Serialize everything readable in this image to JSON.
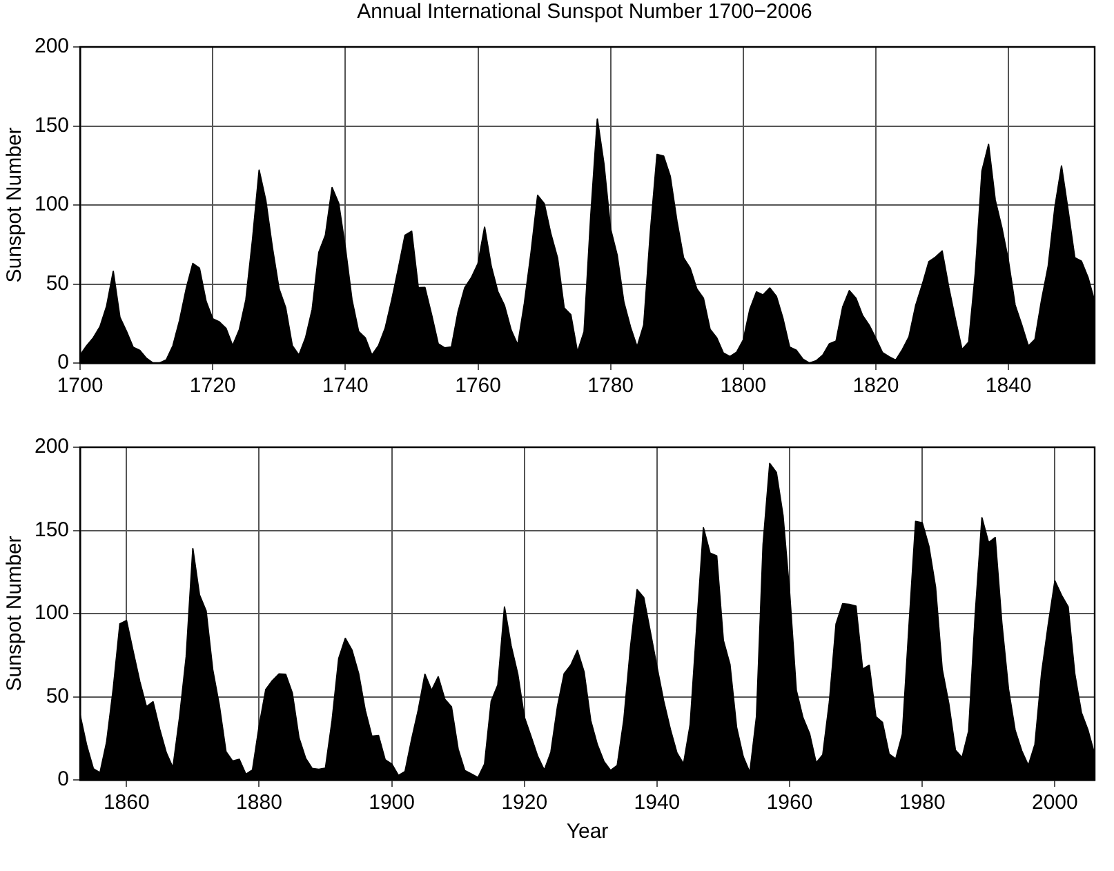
{
  "chart_data": [
    {
      "type": "area",
      "title": "Annual International Sunspot Number 1700−2006",
      "ylabel": "Sunspot Number",
      "xlim": [
        1700,
        1853
      ],
      "ylim": [
        0,
        200
      ],
      "xticks": [
        1700,
        1720,
        1740,
        1760,
        1780,
        1800,
        1820,
        1840
      ],
      "yticks": [
        0,
        50,
        100,
        150,
        200
      ],
      "grid": true,
      "x": [
        1700,
        1701,
        1702,
        1703,
        1704,
        1705,
        1706,
        1707,
        1708,
        1709,
        1710,
        1711,
        1712,
        1713,
        1714,
        1715,
        1716,
        1717,
        1718,
        1719,
        1720,
        1721,
        1722,
        1723,
        1724,
        1725,
        1726,
        1727,
        1728,
        1729,
        1730,
        1731,
        1732,
        1733,
        1734,
        1735,
        1736,
        1737,
        1738,
        1739,
        1740,
        1741,
        1742,
        1743,
        1744,
        1745,
        1746,
        1747,
        1748,
        1749,
        1750,
        1751,
        1752,
        1753,
        1754,
        1755,
        1756,
        1757,
        1758,
        1759,
        1760,
        1761,
        1762,
        1763,
        1764,
        1765,
        1766,
        1767,
        1768,
        1769,
        1770,
        1771,
        1772,
        1773,
        1774,
        1775,
        1776,
        1777,
        1778,
        1779,
        1780,
        1781,
        1782,
        1783,
        1784,
        1785,
        1786,
        1787,
        1788,
        1789,
        1790,
        1791,
        1792,
        1793,
        1794,
        1795,
        1796,
        1797,
        1798,
        1799,
        1800,
        1801,
        1802,
        1803,
        1804,
        1805,
        1806,
        1807,
        1808,
        1809,
        1810,
        1811,
        1812,
        1813,
        1814,
        1815,
        1816,
        1817,
        1818,
        1819,
        1820,
        1821,
        1822,
        1823,
        1824,
        1825,
        1826,
        1827,
        1828,
        1829,
        1830,
        1831,
        1832,
        1833,
        1834,
        1835,
        1836,
        1837,
        1838,
        1839,
        1840,
        1841,
        1842,
        1843,
        1844,
        1845,
        1846,
        1847,
        1848,
        1849,
        1850,
        1851,
        1852,
        1853
      ],
      "series": [
        {
          "color": "#000000",
          "values": [
            5,
            11,
            16,
            23,
            36,
            58,
            29,
            20,
            10,
            8,
            3,
            0,
            0,
            2,
            11,
            27,
            47,
            63,
            60,
            39,
            28,
            26,
            22,
            11,
            21,
            40,
            78,
            122,
            103,
            73,
            47,
            35,
            11,
            5,
            16,
            34,
            70,
            81,
            111,
            101,
            73,
            40,
            20,
            16,
            5,
            11,
            22,
            40,
            60,
            80.9,
            83.4,
            47.7,
            47.8,
            30.7,
            12.2,
            9.6,
            10.2,
            32.4,
            47.6,
            54,
            62.9,
            85.9,
            61.2,
            45.1,
            36.4,
            20.9,
            11.4,
            37.8,
            69.8,
            106.1,
            100.8,
            81.6,
            66.5,
            34.8,
            30.6,
            7,
            19.8,
            92.5,
            154.4,
            125.9,
            84.8,
            68.1,
            38.5,
            22.8,
            10.2,
            24.1,
            82.9,
            132,
            130.9,
            118.1,
            89.9,
            66.6,
            60,
            46.9,
            41,
            21.3,
            16,
            6.4,
            4.1,
            6.8,
            14.5,
            34,
            45,
            43.1,
            47.5,
            42.2,
            28.1,
            10.1,
            8.1,
            2.5,
            0,
            1.4,
            5,
            12.2,
            13.9,
            35.4,
            45.8,
            41,
            30.1,
            23.9,
            15.6,
            6.6,
            4,
            1.8,
            8.5,
            16.6,
            36.3,
            49.6,
            64.2,
            67,
            70.9,
            47.8,
            27.5,
            8.5,
            13.2,
            56.9,
            121.5,
            138.3,
            103.2,
            85.7,
            64.6,
            36.7,
            24.2,
            10.7,
            15,
            40.1,
            61.5,
            98.5,
            124.7,
            96.3,
            66.6,
            64.5,
            54.1,
            39
          ]
        }
      ]
    },
    {
      "type": "area",
      "xlabel": "Year",
      "ylabel": "Sunspot Number",
      "xlim": [
        1853,
        2006
      ],
      "ylim": [
        0,
        200
      ],
      "xticks": [
        1860,
        1880,
        1900,
        1920,
        1940,
        1960,
        1980,
        2000
      ],
      "yticks": [
        0,
        50,
        100,
        150,
        200
      ],
      "grid": true,
      "x": [
        1853,
        1854,
        1855,
        1856,
        1857,
        1858,
        1859,
        1860,
        1861,
        1862,
        1863,
        1864,
        1865,
        1866,
        1867,
        1868,
        1869,
        1870,
        1871,
        1872,
        1873,
        1874,
        1875,
        1876,
        1877,
        1878,
        1879,
        1880,
        1881,
        1882,
        1883,
        1884,
        1885,
        1886,
        1887,
        1888,
        1889,
        1890,
        1891,
        1892,
        1893,
        1894,
        1895,
        1896,
        1897,
        1898,
        1899,
        1900,
        1901,
        1902,
        1903,
        1904,
        1905,
        1906,
        1907,
        1908,
        1909,
        1910,
        1911,
        1912,
        1913,
        1914,
        1915,
        1916,
        1917,
        1918,
        1919,
        1920,
        1921,
        1922,
        1923,
        1924,
        1925,
        1926,
        1927,
        1928,
        1929,
        1930,
        1931,
        1932,
        1933,
        1934,
        1935,
        1936,
        1937,
        1938,
        1939,
        1940,
        1941,
        1942,
        1943,
        1944,
        1945,
        1946,
        1947,
        1948,
        1949,
        1950,
        1951,
        1952,
        1953,
        1954,
        1955,
        1956,
        1957,
        1958,
        1959,
        1960,
        1961,
        1962,
        1963,
        1964,
        1965,
        1966,
        1967,
        1968,
        1969,
        1970,
        1971,
        1972,
        1973,
        1974,
        1975,
        1976,
        1977,
        1978,
        1979,
        1980,
        1981,
        1982,
        1983,
        1984,
        1985,
        1986,
        1987,
        1988,
        1989,
        1990,
        1991,
        1992,
        1993,
        1994,
        1995,
        1996,
        1997,
        1998,
        1999,
        2000,
        2001,
        2002,
        2003,
        2004,
        2005,
        2006
      ],
      "series": [
        {
          "color": "#000000",
          "values": [
            39,
            20.6,
            6.7,
            4.3,
            22.7,
            54.8,
            93.8,
            95.8,
            77.2,
            59.1,
            44,
            47,
            30.5,
            16.3,
            7.3,
            37.6,
            74,
            139,
            111.2,
            101.6,
            66.2,
            44.7,
            17,
            11.3,
            12.4,
            3.4,
            6,
            32.3,
            54.3,
            59.7,
            63.7,
            63.5,
            52.2,
            25.4,
            13.1,
            6.8,
            6.3,
            7.1,
            35.6,
            73,
            85.1,
            78,
            64,
            41.8,
            26.2,
            26.7,
            12.1,
            9.5,
            2.7,
            5,
            24.4,
            42,
            63.5,
            53.8,
            62,
            48.5,
            43.9,
            18.6,
            5.7,
            3.6,
            1.4,
            9.6,
            47.4,
            57.1,
            103.9,
            80.6,
            63.6,
            37.6,
            26.1,
            14.2,
            5.8,
            16.7,
            44.3,
            63.9,
            69,
            77.8,
            64.9,
            35.7,
            21.2,
            11.1,
            5.7,
            8.7,
            36.1,
            79.7,
            114.4,
            109.6,
            88.8,
            67.8,
            47.5,
            30.6,
            16.3,
            9.6,
            33.2,
            92.6,
            151.6,
            136.3,
            134.7,
            83.9,
            69.4,
            31.5,
            13.9,
            4.4,
            38,
            141.7,
            190.2,
            184.8,
            159,
            112.3,
            53.9,
            37.5,
            27.9,
            10.2,
            15.1,
            47,
            93.8,
            105.9,
            105.5,
            104.5,
            66.6,
            68.9,
            38,
            34.5,
            15.5,
            12.6,
            27.5,
            92.5,
            155.4,
            154.6,
            140.4,
            115.9,
            66.6,
            45.9,
            17.9,
            13.4,
            29.4,
            100.2,
            157.6,
            142.6,
            145.7,
            94.3,
            54.6,
            29.9,
            17.5,
            8.6,
            21.5,
            64.3,
            93.3,
            119.6,
            111,
            104,
            63.7,
            40.4,
            29.8,
            15.2
          ]
        }
      ]
    }
  ]
}
